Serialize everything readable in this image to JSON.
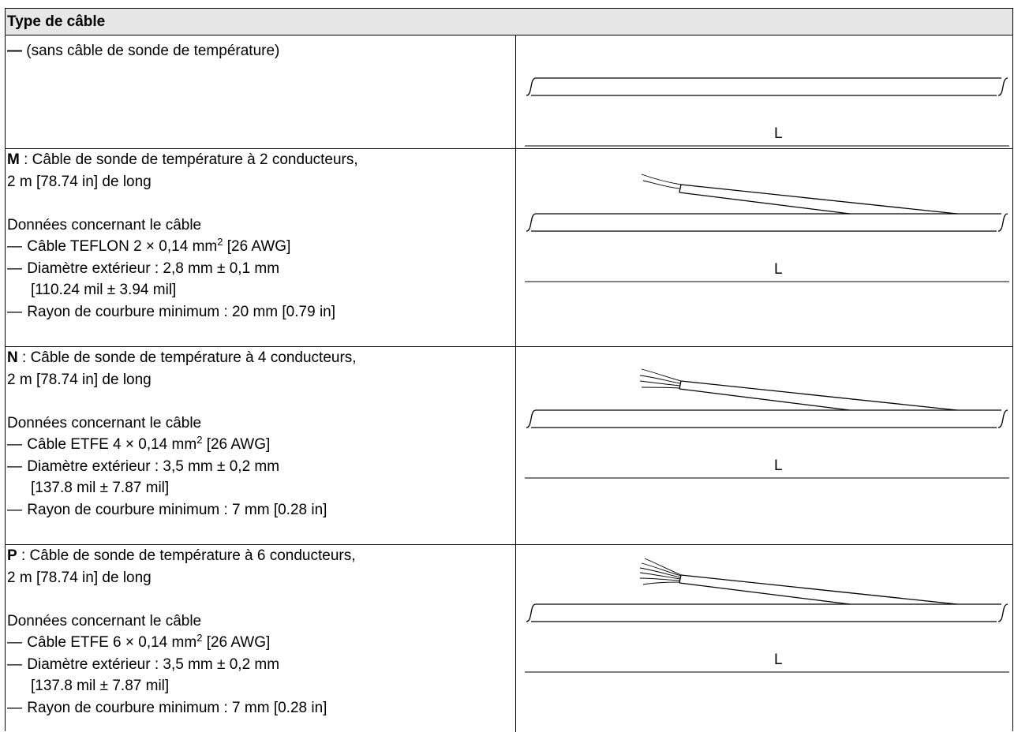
{
  "header": {
    "title": "Type de câble"
  },
  "rows": [
    {
      "code": "—",
      "text": " (sans câble de sonde de température)",
      "length_label": "L"
    },
    {
      "code": "M",
      "title_rest": " : Câble de sonde de température à 2 conducteurs,",
      "title_line2": "2 m [78.74 in] de long",
      "data_heading": "Données concernant le câble",
      "b1_pre": "Câble TEFLON 2 × 0,14 mm",
      "b1_sup": "2",
      "b1_post": " [26 AWG]",
      "b2": "Diamètre extérieur : 2,8 mm ± 0,1 mm",
      "b2_cont": "[110.24 mil ± 3.94 mil]",
      "b3": "Rayon de courbure minimum : 20 mm [0.79 in]",
      "dash": "—",
      "length_label": "L"
    },
    {
      "code": "N",
      "title_rest": " : Câble de sonde de température à 4 conducteurs,",
      "title_line2": "2 m [78.74 in] de long",
      "data_heading": "Données concernant le câble",
      "b1_pre": "Câble ETFE 4 × 0,14 mm",
      "b1_sup": "2",
      "b1_post": " [26 AWG]",
      "b2": "Diamètre extérieur : 3,5 mm ± 0,2 mm",
      "b2_cont": "[137.8 mil ± 7.87 mil]",
      "b3": "Rayon de courbure minimum : 7 mm [0.28 in]",
      "dash": "—",
      "length_label": "L"
    },
    {
      "code": "P",
      "title_rest": " : Câble de sonde de température à 6 conducteurs,",
      "title_line2": "2 m [78.74 in] de long",
      "data_heading": "Données concernant le câble",
      "b1_pre": "Câble ETFE 6 × 0,14 mm",
      "b1_sup": "2",
      "b1_post": " [26 AWG]",
      "b2": "Diamètre extérieur : 3,5 mm ± 0,2 mm",
      "b2_cont": "[137.8 mil ± 7.87 mil]",
      "b3": "Rayon de courbure minimum : 7 mm [0.28 in]",
      "dash": "—",
      "length_label": "L"
    }
  ],
  "colors": {
    "header_bg": "#e6e6e6",
    "line": "#000000"
  }
}
